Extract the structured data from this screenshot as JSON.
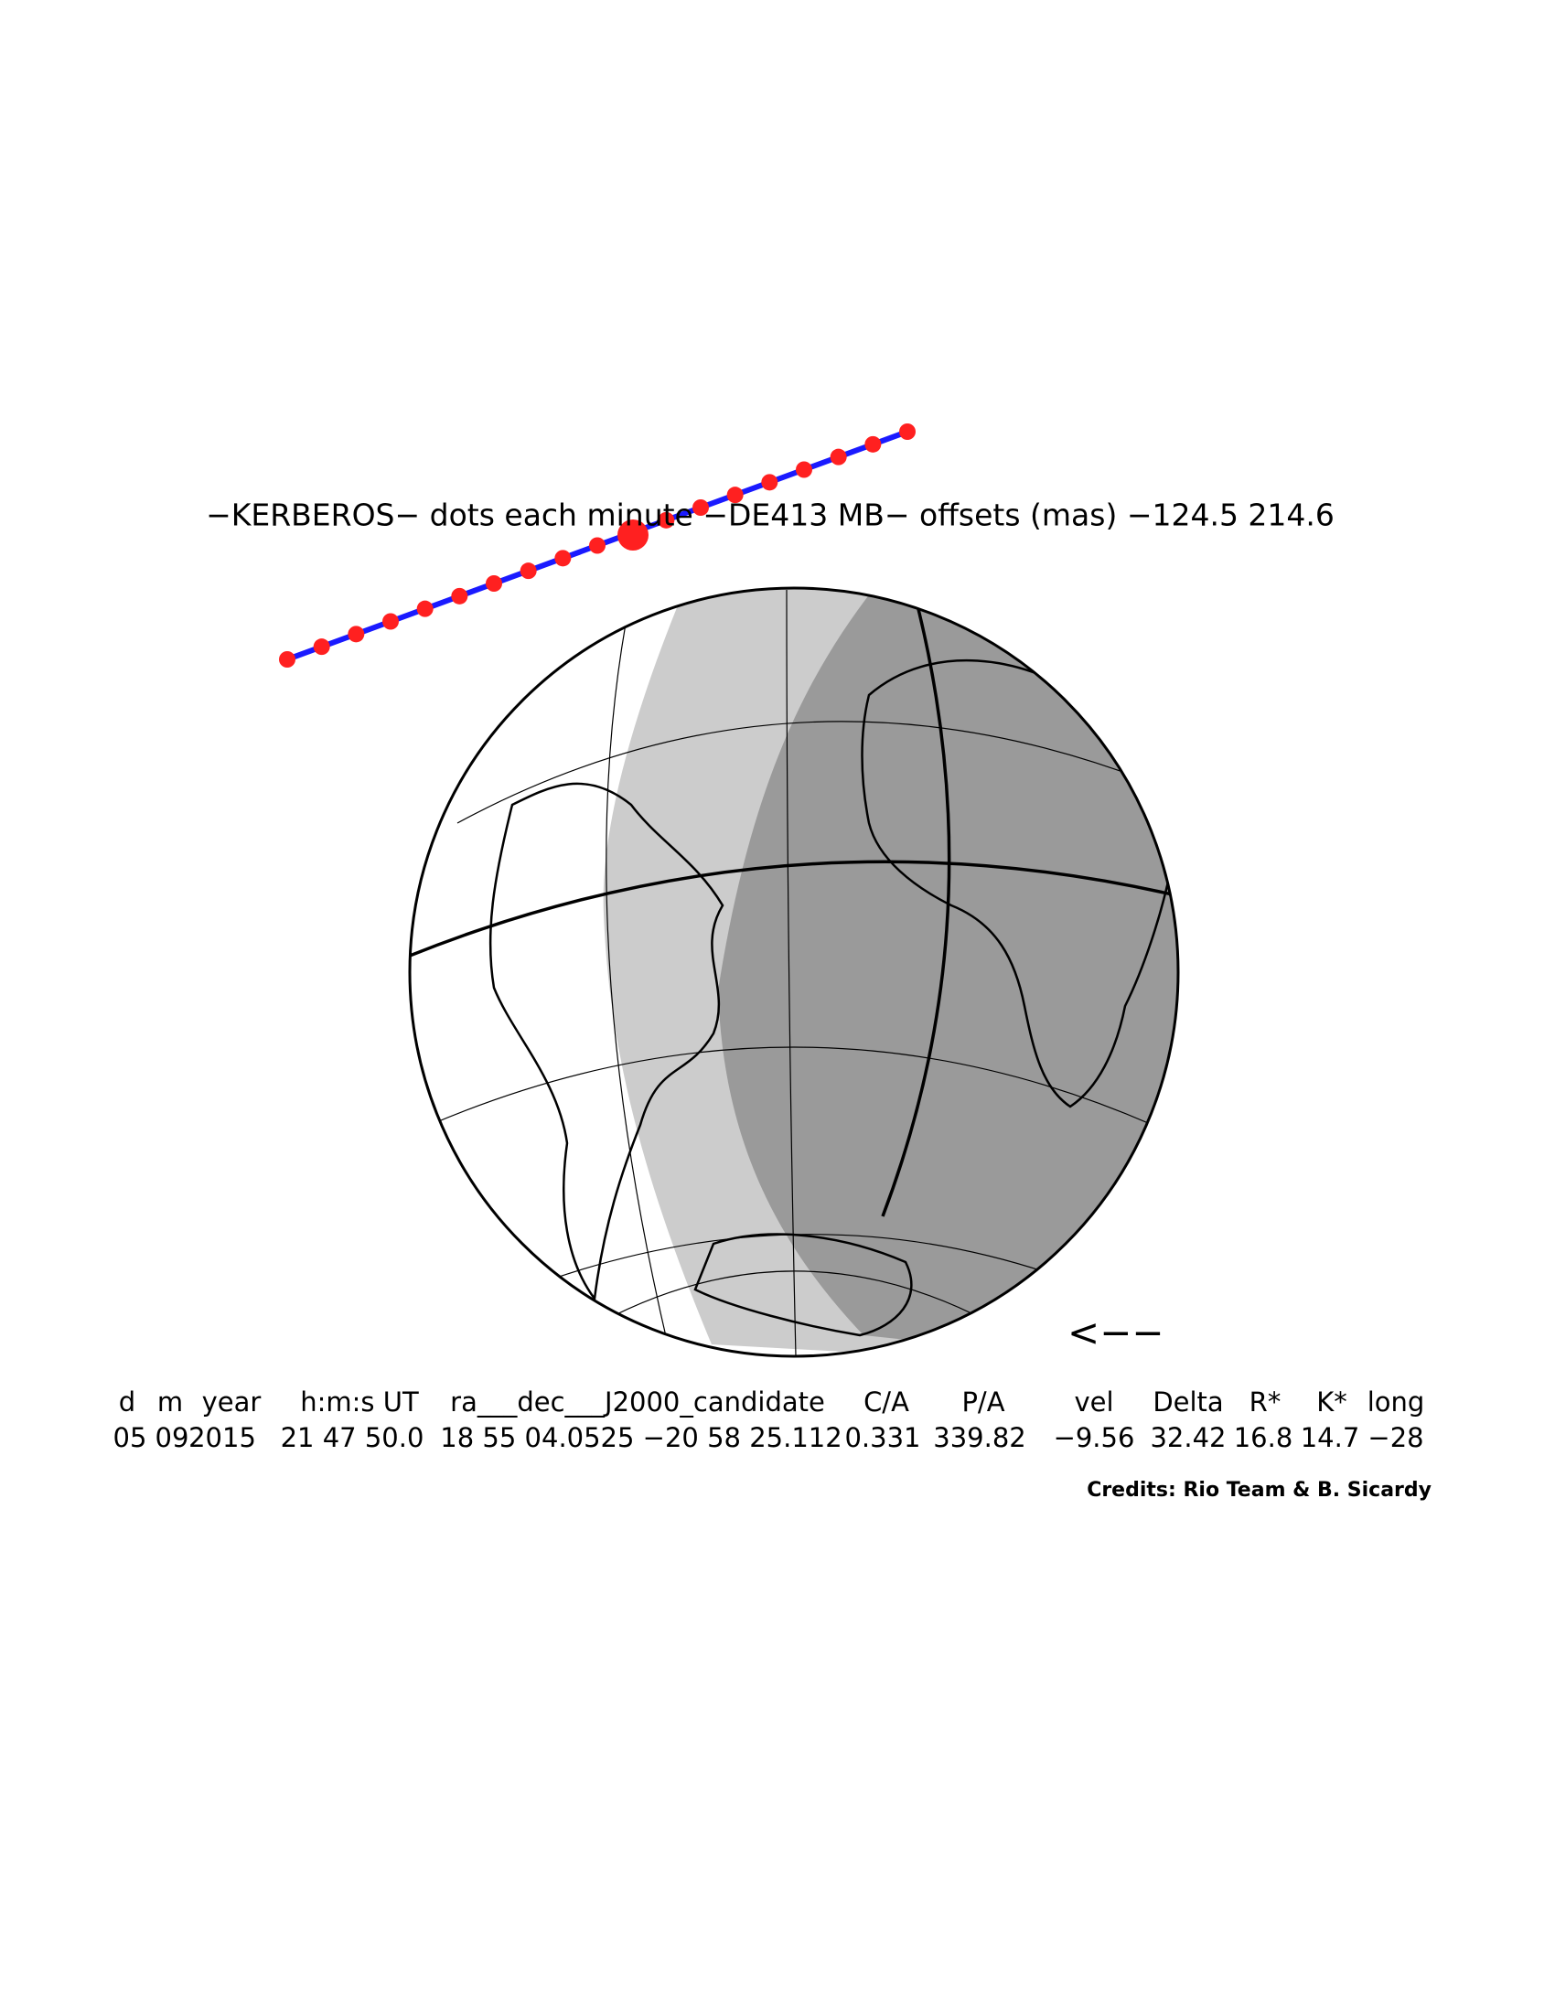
{
  "title": "−KERBEROS− dots each minute −DE413 MB− offsets (mas) −124.5  214.6",
  "direction": "<−−",
  "table": {
    "header": [
      "d",
      "m",
      "year",
      "h:m:s UT",
      "ra___dec___J2000_candidate",
      "C/A",
      "P/A",
      "vel",
      "Delta",
      "R*",
      "K*",
      "long"
    ],
    "values": [
      "05",
      "09",
      "2015",
      "21 47 50.0",
      "18 55 04.0525 −20 58 25.112",
      "0.331",
      "339.82",
      "−9.56",
      "32.42",
      "16.8",
      "14.7",
      "−28"
    ]
  },
  "credits": "Credits: Rio Team & B. Sicardy"
}
